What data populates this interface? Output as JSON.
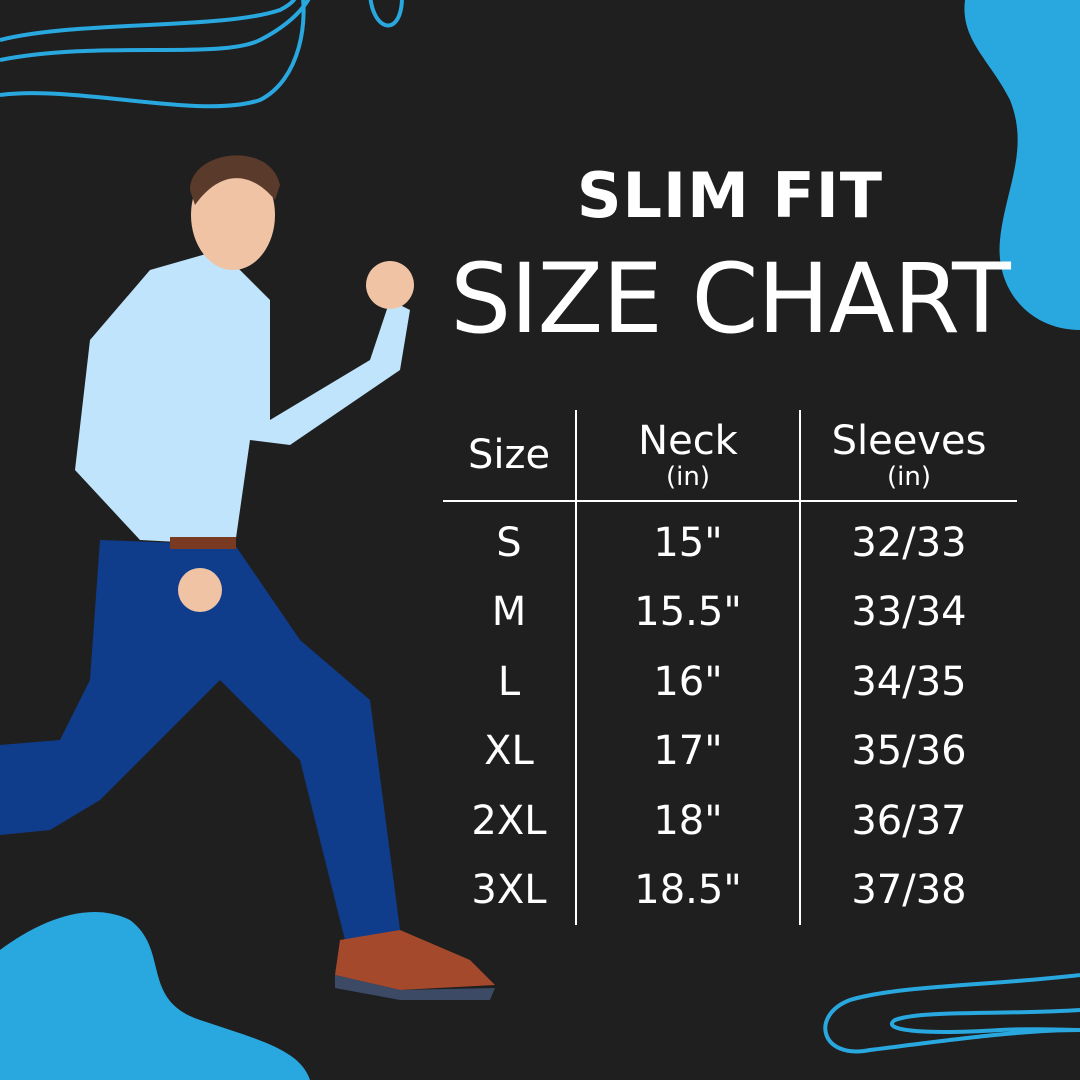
{
  "heading": {
    "line1": "SLIM FIT",
    "line2": "SIZE CHART"
  },
  "colors": {
    "background": "#1f1f1f",
    "accent_blue": "#29a8e0",
    "text": "#ffffff"
  },
  "table": {
    "headers": [
      {
        "label": "Size",
        "unit": ""
      },
      {
        "label": "Neck",
        "unit": "(in)"
      },
      {
        "label": "Sleeves",
        "unit": "(in)"
      }
    ],
    "rows": [
      [
        "S",
        "15\"",
        "32/33"
      ],
      [
        "M",
        "15.5\"",
        "33/34"
      ],
      [
        "L",
        "16\"",
        "34/35"
      ],
      [
        "XL",
        "17\"",
        "35/36"
      ],
      [
        "2XL",
        "18\"",
        "36/37"
      ],
      [
        "3XL",
        "18.5\"",
        "37/38"
      ]
    ]
  }
}
